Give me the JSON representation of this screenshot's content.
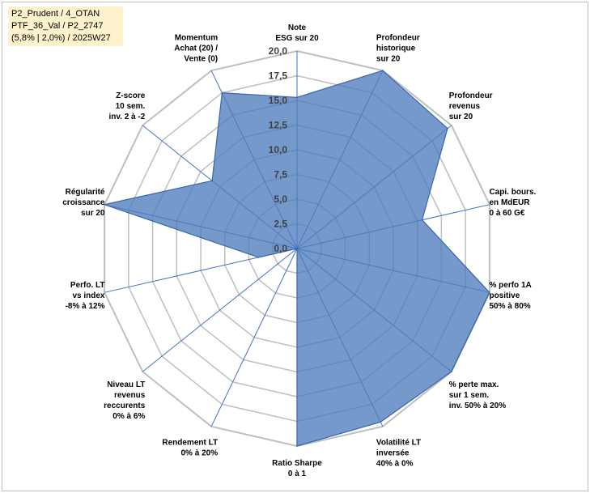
{
  "info_box": {
    "lines": [
      "P2_Prudent / 4_OTAN",
      "PTF_36_Val / P2_2747",
      "(5,8% | 2,0%) / 2025W27"
    ]
  },
  "chart_data": {
    "type": "radar",
    "r_min": 0,
    "r_max": 20,
    "tick_step": 2.5,
    "tick_labels": [
      "0,0",
      "2,5",
      "5,0",
      "7,5",
      "10,0",
      "12,5",
      "15,0",
      "17,5",
      "20,0"
    ],
    "categories": [
      [
        "Note",
        "ESG sur 20"
      ],
      [
        "Profondeur",
        "historique",
        "sur 20"
      ],
      [
        "Profondeur",
        "revenus",
        "sur 20"
      ],
      [
        "Capi. bours.",
        "en MdEUR",
        "0 à 60 G€"
      ],
      [
        "% perfo 1A",
        "positive",
        "50% à 80%"
      ],
      [
        "% perte max.",
        "sur 1 sem.",
        "inv. 50% à 20%"
      ],
      [
        "Volatilité LT",
        "inversée",
        "40% à 0%"
      ],
      [
        "Ratio Sharpe",
        "0 à 1"
      ],
      [
        "Rendement LT",
        "0% à 20%"
      ],
      [
        "Niveau LT",
        "revenus",
        "reccurents",
        "0% à 6%"
      ],
      [
        "Perfo. LT",
        "vs index",
        "-8% à 12%"
      ],
      [
        "Régularité",
        "croissance",
        "sur 20"
      ],
      [
        "Z-score",
        "10 sem.",
        "inv. 2 à -2"
      ],
      [
        "Momentum",
        "Achat (20) /",
        "Vente (0)"
      ]
    ],
    "series": [
      {
        "values": [
          15.3,
          20,
          19.5,
          13,
          20,
          20,
          19.5,
          20,
          0,
          0,
          4,
          20,
          11,
          17.5
        ]
      }
    ],
    "colors": {
      "fill": "#4e7cbd",
      "fill_opacity": 0.78,
      "stroke": "#3a65a8",
      "grid": "#bfbfbf",
      "spoke": "#4472c4"
    },
    "grid": true
  }
}
